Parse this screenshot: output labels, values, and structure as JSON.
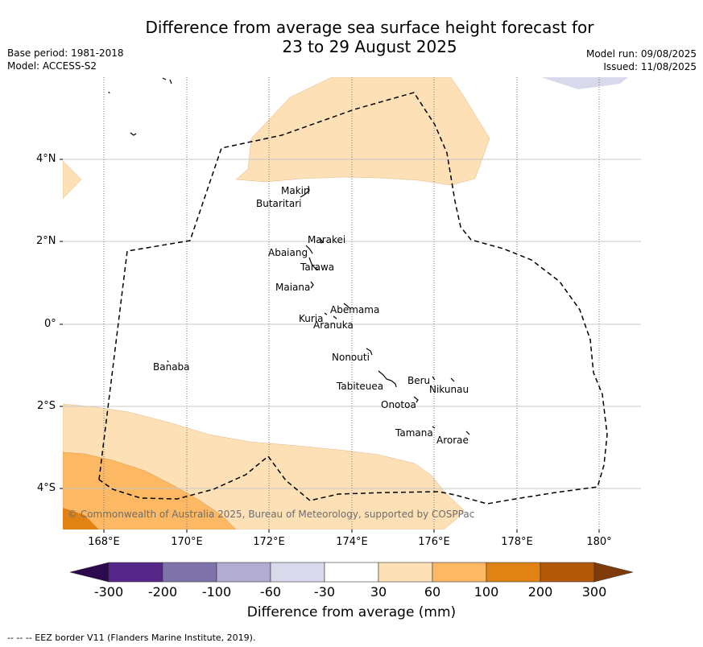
{
  "title_line1": "Difference from average sea surface height forecast for",
  "title_line2": "23 to 29 August 2025",
  "meta_left": {
    "base_period": "Base period: 1981-2018",
    "model": "Model: ACCESS-S2"
  },
  "meta_right": {
    "model_run": "Model run: 09/08/2025",
    "issued": "Issued: 11/08/2025"
  },
  "map": {
    "lon_ticks": [
      "168°E",
      "170°E",
      "172°E",
      "174°E",
      "176°E",
      "178°E",
      "180°"
    ],
    "lat_ticks": [
      "4°N",
      "2°N",
      "0°",
      "2°S",
      "4°S"
    ],
    "islands": [
      {
        "name": "Makin"
      },
      {
        "name": "Butaritari"
      },
      {
        "name": "Marakei"
      },
      {
        "name": "Abaiang"
      },
      {
        "name": "Tarawa"
      },
      {
        "name": "Maiana"
      },
      {
        "name": "Abemama"
      },
      {
        "name": "Kuria"
      },
      {
        "name": "Aranuka"
      },
      {
        "name": "Nonouti"
      },
      {
        "name": "Banaba"
      },
      {
        "name": "Beru"
      },
      {
        "name": "Nikunau"
      },
      {
        "name": "Tabiteuea"
      },
      {
        "name": "Onotoa"
      },
      {
        "name": "Tamana"
      },
      {
        "name": "Arorae"
      }
    ],
    "copyright": "© Commonwealth of Australia 2025, Bureau of Meteorology, supported by COSPPac"
  },
  "colorbar": {
    "ticks": [
      "-300",
      "-200",
      "-100",
      "-60",
      "-30",
      "30",
      "60",
      "100",
      "200",
      "300"
    ],
    "colors": {
      "lt_-300": "#2d0a4e",
      "n300_n200": "#542788",
      "n200_n100": "#8073ac",
      "n100_n60": "#b2abd2",
      "n60_n30": "#d8daeb",
      "n30_30": "#ffffff",
      "30_60": "#fee0b6",
      "60_100": "#fdb863",
      "100_200": "#e08214",
      "200_300": "#b35806",
      "gt_300": "#7f3b08"
    },
    "label": "Difference from average (mm)"
  },
  "eez_note": "--  --  -- EEZ border V11 (Flanders Marine Institute, 2019)."
}
